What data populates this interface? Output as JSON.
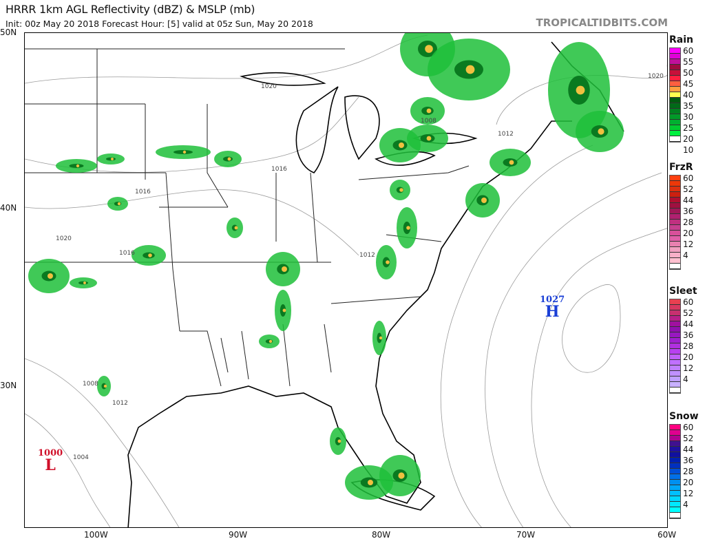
{
  "header": {
    "title": "HRRR 1km AGL Reflectivity (dBZ) & MSLP (mb)",
    "subtitle": "Init: 00z May 20 2018   Forecast Hour: [5]   valid at 05z Sun, May 20 2018",
    "watermark": "TROPICALTIDBITS.COM"
  },
  "axes": {
    "lat_labels": [
      "50N",
      "40N",
      "30N"
    ],
    "lon_labels": [
      "100W",
      "90W",
      "80W",
      "70W",
      "60W"
    ]
  },
  "isobar_labels": [
    "1020",
    "1016",
    "1016",
    "1012",
    "1012",
    "1008",
    "1008",
    "1012",
    "1004",
    "1020",
    "1020",
    "1016"
  ],
  "pressure_centers": [
    {
      "type": "H",
      "value": "1027",
      "color": "#1a3fd6"
    },
    {
      "type": "L",
      "value": "1000",
      "color": "#d0102a"
    }
  ],
  "legends": [
    {
      "name": "Rain",
      "labels": [
        "60",
        "55",
        "50",
        "45",
        "40",
        "35",
        "30",
        "25",
        "20",
        "10"
      ],
      "colors": [
        "#ff00ff",
        "#e000d8",
        "#c0109a",
        "#a00a40",
        "#c8103a",
        "#ff2040",
        "#ff6040",
        "#ffa040",
        "#ffff50",
        "#005a10",
        "#006a18",
        "#008020",
        "#009a28",
        "#00b030",
        "#00cc30",
        "#00f040",
        "#ffffff"
      ]
    },
    {
      "name": "FrzR",
      "labels": [
        "60",
        "52",
        "44",
        "36",
        "28",
        "20",
        "12",
        "4"
      ],
      "colors": [
        "#ff4010",
        "#ee3808",
        "#dd3010",
        "#cc2010",
        "#b01030",
        "#a01040",
        "#a01858",
        "#b02070",
        "#c03080",
        "#c84090",
        "#d8509a",
        "#e060a8",
        "#e880b0",
        "#f0a0c0",
        "#f8b0c8",
        "#ffc0d0",
        "#ffffff"
      ]
    },
    {
      "name": "Sleet",
      "labels": [
        "60",
        "52",
        "44",
        "36",
        "28",
        "20",
        "12",
        "4"
      ],
      "colors": [
        "#e84050",
        "#d83860",
        "#c83070",
        "#b82088",
        "#a010a0",
        "#9010b0",
        "#9818c0",
        "#a020d0",
        "#b030e0",
        "#b840f0",
        "#c060f8",
        "#c070ff",
        "#c080ff",
        "#c090ff",
        "#c0a0ff",
        "#c8b0ff",
        "#ffffff"
      ]
    },
    {
      "name": "Snow",
      "labels": [
        "60",
        "52",
        "44",
        "36",
        "28",
        "20",
        "12",
        "4"
      ],
      "colors": [
        "#ff0080",
        "#e00090",
        "#b00090",
        "#401090",
        "#2010a0",
        "#1010a0",
        "#0020b0",
        "#0030c0",
        "#0050d8",
        "#0070e8",
        "#0090f0",
        "#00a8f8",
        "#00c0ff",
        "#00d8ff",
        "#00e8ff",
        "#00ffff",
        "#ffffff"
      ]
    }
  ]
}
